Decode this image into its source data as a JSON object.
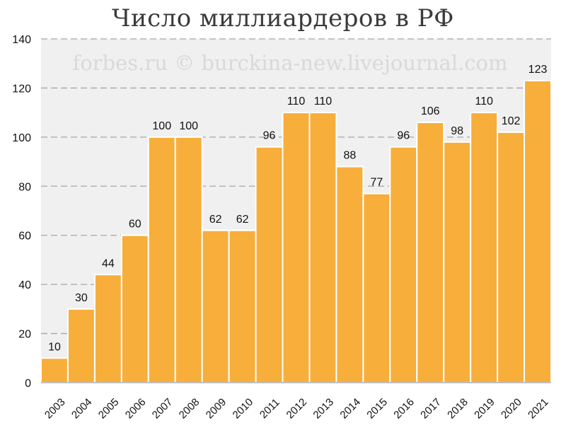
{
  "chart_data": {
    "type": "bar",
    "title": "Число миллиардеров в РФ",
    "watermark": "forbes.ru © burckina-new.livejournal.com",
    "xlabel": "",
    "ylabel": "",
    "ylim": [
      0,
      140
    ],
    "yticks": [
      0,
      20,
      40,
      60,
      80,
      100,
      120,
      140
    ],
    "grid": true,
    "categories": [
      "2003",
      "2004",
      "2005",
      "2006",
      "2007",
      "2008",
      "2009",
      "2010",
      "2011",
      "2012",
      "2013",
      "2014",
      "2015",
      "2016",
      "2017",
      "2018",
      "2019",
      "2020",
      "2021"
    ],
    "values": [
      10,
      30,
      44,
      60,
      100,
      100,
      62,
      62,
      96,
      110,
      110,
      88,
      77,
      96,
      106,
      98,
      110,
      102,
      123
    ],
    "colors": {
      "bar": "#F7AE3B",
      "plot_background": "#F0F0F0",
      "gridline": "#A6A6A6",
      "bar_border": "#FFFFFF"
    }
  }
}
